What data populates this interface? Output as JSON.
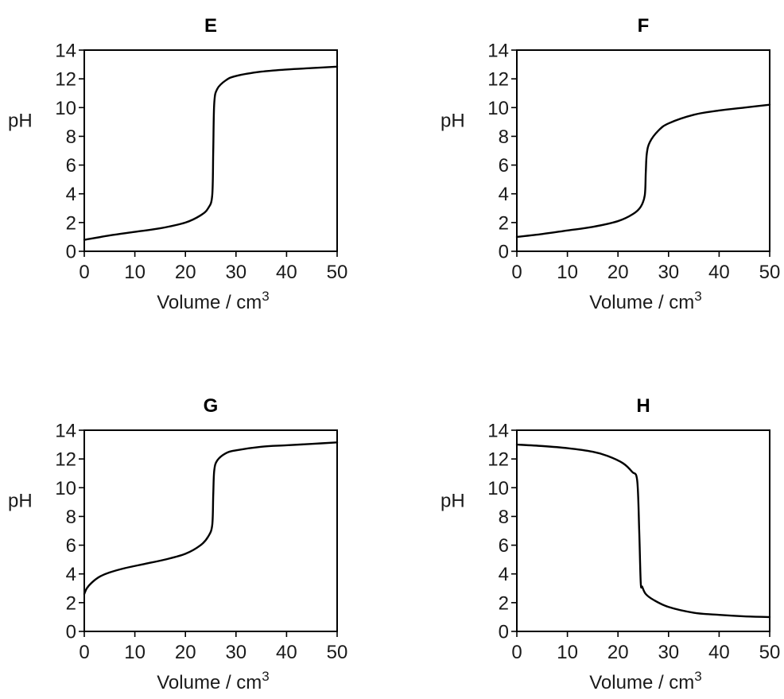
{
  "chart_data": [
    {
      "type": "line",
      "title": "E",
      "xlabel": "Volume / cm",
      "xlabel_sup": "3",
      "ylabel": "pH",
      "xlim": [
        0,
        50
      ],
      "ylim": [
        0,
        14
      ],
      "x_ticks": [
        "0",
        "10",
        "20",
        "30",
        "40",
        "50"
      ],
      "y_ticks": [
        "0",
        "2",
        "4",
        "6",
        "8",
        "10",
        "12",
        "14"
      ],
      "grid": false,
      "series": [
        {
          "x": [
            0,
            5,
            10,
            15,
            20,
            23,
            24.5,
            25.3,
            25.5,
            25.7,
            26.3,
            28,
            30,
            35,
            40,
            45,
            50
          ],
          "y": [
            0.8,
            1.1,
            1.35,
            1.6,
            2.0,
            2.5,
            3.0,
            3.9,
            7.0,
            10.3,
            11.3,
            11.9,
            12.2,
            12.5,
            12.65,
            12.75,
            12.85
          ]
        }
      ]
    },
    {
      "type": "line",
      "title": "F",
      "xlabel": "Volume / cm",
      "xlabel_sup": "3",
      "ylabel": "pH",
      "xlim": [
        0,
        50
      ],
      "ylim": [
        0,
        14
      ],
      "x_ticks": [
        "0",
        "10",
        "20",
        "30",
        "40",
        "50"
      ],
      "y_ticks": [
        "0",
        "2",
        "4",
        "6",
        "8",
        "10",
        "12",
        "14"
      ],
      "grid": false,
      "series": [
        {
          "x": [
            0,
            5,
            10,
            15,
            20,
            23,
            24.5,
            25.3,
            25.5,
            25.7,
            26.3,
            28,
            30,
            35,
            40,
            45,
            50
          ],
          "y": [
            1.0,
            1.2,
            1.45,
            1.7,
            2.1,
            2.6,
            3.1,
            3.9,
            5.5,
            6.8,
            7.6,
            8.4,
            8.9,
            9.5,
            9.8,
            10.0,
            10.2
          ]
        }
      ]
    },
    {
      "type": "line",
      "title": "G",
      "xlabel": "Volume / cm",
      "xlabel_sup": "3",
      "ylabel": "pH",
      "xlim": [
        0,
        50
      ],
      "ylim": [
        0,
        14
      ],
      "x_ticks": [
        "0",
        "10",
        "20",
        "30",
        "40",
        "50"
      ],
      "y_ticks": [
        "0",
        "2",
        "4",
        "6",
        "8",
        "10",
        "12",
        "14"
      ],
      "grid": false,
      "series": [
        {
          "x": [
            0,
            0.5,
            1.5,
            3,
            5,
            8,
            12,
            16,
            20,
            23,
            24.5,
            25.3,
            25.5,
            25.7,
            26.3,
            28,
            30,
            35,
            40,
            45,
            50
          ],
          "y": [
            2.6,
            3.0,
            3.4,
            3.8,
            4.1,
            4.4,
            4.7,
            5.0,
            5.4,
            6.0,
            6.6,
            7.4,
            9.5,
            11.2,
            11.9,
            12.4,
            12.6,
            12.85,
            12.95,
            13.05,
            13.15
          ]
        }
      ]
    },
    {
      "type": "line",
      "title": "H",
      "xlabel": "Volume / cm",
      "xlabel_sup": "3",
      "ylabel": "pH",
      "xlim": [
        0,
        50
      ],
      "ylim": [
        0,
        14
      ],
      "x_ticks": [
        "0",
        "10",
        "20",
        "30",
        "40",
        "50"
      ],
      "y_ticks": [
        "0",
        "2",
        "4",
        "6",
        "8",
        "10",
        "12",
        "14"
      ],
      "grid": false,
      "series": [
        {
          "x": [
            0,
            5,
            10,
            15,
            18,
            21,
            22.8,
            23.8,
            24.2,
            24.5,
            24.8,
            25.5,
            27,
            30,
            35,
            40,
            45,
            50
          ],
          "y": [
            13.0,
            12.9,
            12.75,
            12.5,
            12.2,
            11.7,
            11.1,
            10.5,
            7.0,
            3.4,
            3.1,
            2.6,
            2.2,
            1.7,
            1.3,
            1.15,
            1.05,
            1.0
          ]
        }
      ]
    }
  ]
}
